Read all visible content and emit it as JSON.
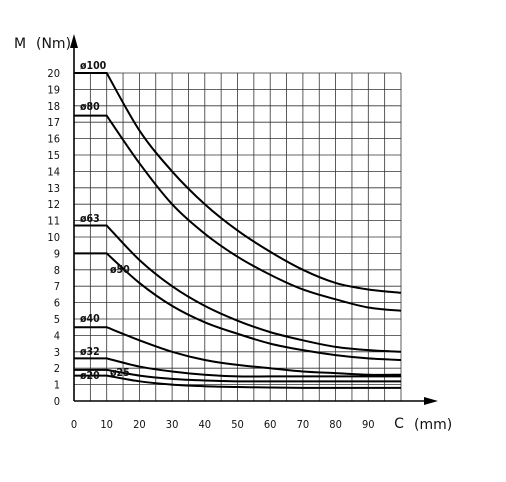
{
  "chart_data": {
    "type": "line",
    "title": "",
    "xlabel": "C (mm)",
    "ylabel": "M (Nm)",
    "xlim": [
      0,
      100
    ],
    "ylim": [
      0,
      20
    ],
    "x_ticks": [
      "0",
      "10",
      "20",
      "30",
      "40",
      "50",
      "60",
      "70",
      "80",
      "90",
      "C"
    ],
    "x_unit_label": "(mm)",
    "y_axis_title": "M",
    "y_unit_label": "(Nm)",
    "y_ticks": [
      "0",
      "1",
      "2",
      "3",
      "4",
      "5",
      "6",
      "7",
      "8",
      "9",
      "10",
      "11",
      "12",
      "13",
      "14",
      "15",
      "16",
      "17",
      "18",
      "19",
      "20"
    ],
    "grid": true,
    "legend": "none",
    "series": [
      {
        "name": "ø100",
        "x": [
          0,
          10,
          20,
          30,
          40,
          50,
          60,
          70,
          80,
          90,
          100
        ],
        "y": [
          20.0,
          20.0,
          16.5,
          14.0,
          12.0,
          10.4,
          9.1,
          8.0,
          7.2,
          6.8,
          6.6
        ]
      },
      {
        "name": "ø80",
        "x": [
          0,
          10,
          20,
          30,
          40,
          50,
          60,
          70,
          80,
          90,
          100
        ],
        "y": [
          17.4,
          17.4,
          14.5,
          12.0,
          10.2,
          8.8,
          7.7,
          6.8,
          6.2,
          5.7,
          5.5
        ]
      },
      {
        "name": "ø63",
        "x": [
          0,
          10,
          20,
          30,
          40,
          50,
          60,
          70,
          80,
          90,
          100
        ],
        "y": [
          10.7,
          10.7,
          8.6,
          7.0,
          5.8,
          4.9,
          4.2,
          3.7,
          3.3,
          3.1,
          3.0
        ]
      },
      {
        "name": "ø50",
        "x": [
          0,
          10,
          20,
          30,
          40,
          50,
          60,
          70,
          80,
          90,
          100
        ],
        "y": [
          9.0,
          9.0,
          7.2,
          5.8,
          4.8,
          4.1,
          3.5,
          3.1,
          2.8,
          2.6,
          2.5
        ]
      },
      {
        "name": "ø40",
        "x": [
          0,
          10,
          20,
          30,
          40,
          50,
          60,
          70,
          80,
          90,
          100
        ],
        "y": [
          4.5,
          4.5,
          3.7,
          3.0,
          2.5,
          2.2,
          2.0,
          1.8,
          1.7,
          1.6,
          1.6
        ]
      },
      {
        "name": "ø32",
        "x": [
          0,
          10,
          20,
          30,
          40,
          50,
          60,
          70,
          80,
          90,
          100
        ],
        "y": [
          2.6,
          2.6,
          2.1,
          1.8,
          1.6,
          1.5,
          1.5,
          1.5,
          1.5,
          1.5,
          1.5
        ]
      },
      {
        "name": "ø25",
        "x": [
          0,
          10,
          20,
          30,
          40,
          50,
          60,
          70,
          80,
          90,
          100
        ],
        "y": [
          1.9,
          1.9,
          1.55,
          1.35,
          1.25,
          1.2,
          1.2,
          1.2,
          1.2,
          1.2,
          1.2
        ]
      },
      {
        "name": "ø20",
        "x": [
          0,
          10,
          20,
          30,
          40,
          50,
          60,
          70,
          80,
          90,
          100
        ],
        "y": [
          1.55,
          1.55,
          1.2,
          1.0,
          0.9,
          0.85,
          0.82,
          0.8,
          0.8,
          0.8,
          0.8
        ]
      }
    ]
  }
}
